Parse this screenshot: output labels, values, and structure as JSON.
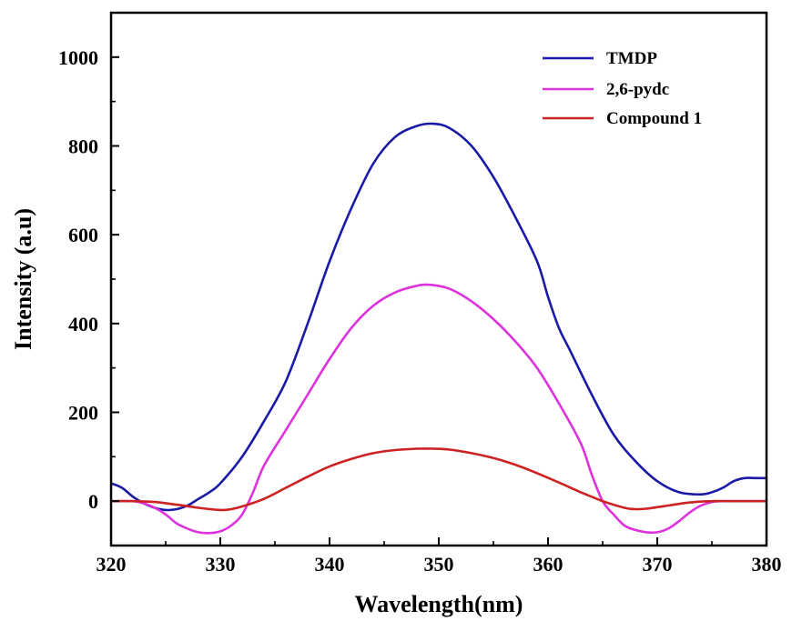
{
  "chart_data": {
    "type": "line",
    "title": "",
    "xlabel": "Wavelength(nm)",
    "ylabel": "Intensity (a.u)",
    "xlim": [
      320,
      380
    ],
    "ylim": [
      -100,
      1100
    ],
    "xticks": [
      320,
      330,
      340,
      350,
      360,
      370,
      380
    ],
    "yticks": [
      0,
      200,
      400,
      600,
      800,
      1000
    ],
    "legend_position": "top-right",
    "grid": false,
    "series": [
      {
        "name": "TMDP",
        "color": "#1a1aa6",
        "x": [
          320,
          321,
          322,
          323,
          324,
          325,
          326,
          327,
          328,
          329,
          330,
          332,
          334,
          336,
          338,
          340,
          342,
          344,
          346,
          348,
          349.5,
          351,
          353,
          355,
          357,
          359,
          360,
          361,
          362,
          364,
          366,
          368,
          370,
          372,
          374,
          375,
          376,
          377,
          378,
          379,
          380
        ],
        "y": [
          40,
          30,
          10,
          -5,
          -15,
          -20,
          -18,
          -10,
          5,
          20,
          40,
          100,
          180,
          270,
          400,
          540,
          660,
          760,
          820,
          845,
          850,
          840,
          800,
          730,
          640,
          540,
          460,
          390,
          340,
          240,
          150,
          90,
          45,
          20,
          15,
          20,
          30,
          45,
          52,
          52,
          52
        ]
      },
      {
        "name": "2,6-pydc",
        "color": "#dd33dd",
        "x": [
          320,
          322,
          323,
          324,
          325,
          326,
          327,
          328,
          329,
          330,
          331,
          332,
          333,
          334,
          336,
          338,
          340,
          342,
          344,
          346,
          348,
          349.3,
          351,
          353,
          355,
          357,
          359,
          361,
          363,
          364,
          365,
          366,
          367,
          368,
          369,
          370,
          371,
          372,
          373,
          374,
          375,
          376,
          378,
          380
        ],
        "y": [
          0,
          0,
          -5,
          -15,
          -30,
          -50,
          -62,
          -70,
          -72,
          -68,
          -55,
          -30,
          20,
          80,
          160,
          240,
          320,
          390,
          440,
          470,
          485,
          487,
          478,
          450,
          410,
          360,
          300,
          220,
          130,
          60,
          0,
          -30,
          -55,
          -65,
          -70,
          -70,
          -62,
          -45,
          -25,
          -10,
          -2,
          0,
          0,
          0
        ]
      },
      {
        "name": "Compound 1",
        "color": "#cc2222",
        "x": [
          320,
          322,
          324,
          326,
          328,
          330,
          331,
          332,
          334,
          336,
          338,
          340,
          342,
          344,
          346,
          348,
          349.5,
          351,
          353,
          355,
          357,
          359,
          361,
          363,
          365,
          367,
          368,
          369,
          371,
          373,
          375,
          377,
          380
        ],
        "y": [
          0,
          0,
          -2,
          -8,
          -15,
          -20,
          -18,
          -12,
          5,
          30,
          55,
          78,
          95,
          108,
          115,
          118,
          118,
          116,
          108,
          97,
          82,
          63,
          42,
          20,
          0,
          -15,
          -18,
          -17,
          -10,
          -3,
          0,
          0,
          0
        ]
      }
    ]
  }
}
